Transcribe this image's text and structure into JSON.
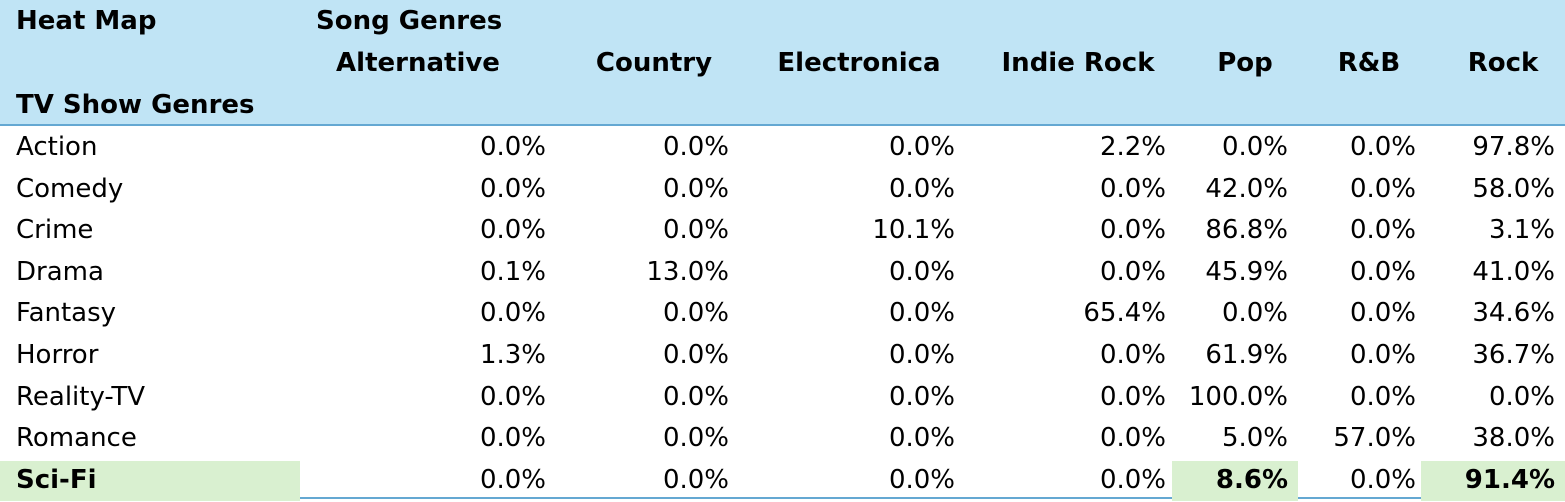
{
  "chart_data": {
    "type": "heatmap",
    "title": "Heat Map",
    "column_axis_label": "Song Genres",
    "row_axis_label": "TV Show Genres",
    "columns": [
      "Alternative",
      "Country",
      "Electronica",
      "Indie Rock",
      "Pop",
      "R&B",
      "Rock"
    ],
    "rows": [
      {
        "label": "Action",
        "values": [
          "0.0%",
          "0.0%",
          "0.0%",
          "2.2%",
          "0.0%",
          "0.0%",
          "97.8%"
        ]
      },
      {
        "label": "Comedy",
        "values": [
          "0.0%",
          "0.0%",
          "0.0%",
          "0.0%",
          "42.0%",
          "0.0%",
          "58.0%"
        ]
      },
      {
        "label": "Crime",
        "values": [
          "0.0%",
          "0.0%",
          "10.1%",
          "0.0%",
          "86.8%",
          "0.0%",
          "3.1%"
        ]
      },
      {
        "label": "Drama",
        "values": [
          "0.1%",
          "13.0%",
          "0.0%",
          "0.0%",
          "45.9%",
          "0.0%",
          "41.0%"
        ]
      },
      {
        "label": "Fantasy",
        "values": [
          "0.0%",
          "0.0%",
          "0.0%",
          "65.4%",
          "0.0%",
          "0.0%",
          "34.6%"
        ]
      },
      {
        "label": "Horror",
        "values": [
          "1.3%",
          "0.0%",
          "0.0%",
          "0.0%",
          "61.9%",
          "0.0%",
          "36.7%"
        ]
      },
      {
        "label": "Reality-TV",
        "values": [
          "0.0%",
          "0.0%",
          "0.0%",
          "0.0%",
          "100.0%",
          "0.0%",
          "0.0%"
        ]
      },
      {
        "label": "Romance",
        "values": [
          "0.0%",
          "0.0%",
          "0.0%",
          "0.0%",
          "5.0%",
          "57.0%",
          "38.0%"
        ]
      },
      {
        "label": "Sci-Fi",
        "values": [
          "0.0%",
          "0.0%",
          "0.0%",
          "0.0%",
          "8.6%",
          "0.0%",
          "91.4%"
        ]
      }
    ],
    "highlight": {
      "row": "Sci-Fi",
      "columns": [
        "Pop",
        "Rock"
      ],
      "color": "#d9f0d0"
    }
  },
  "colors": {
    "header_background": "#c0e4f5",
    "header_rule": "#64a8d2",
    "highlight_background": "#d9f0d0",
    "text": "#000000"
  }
}
